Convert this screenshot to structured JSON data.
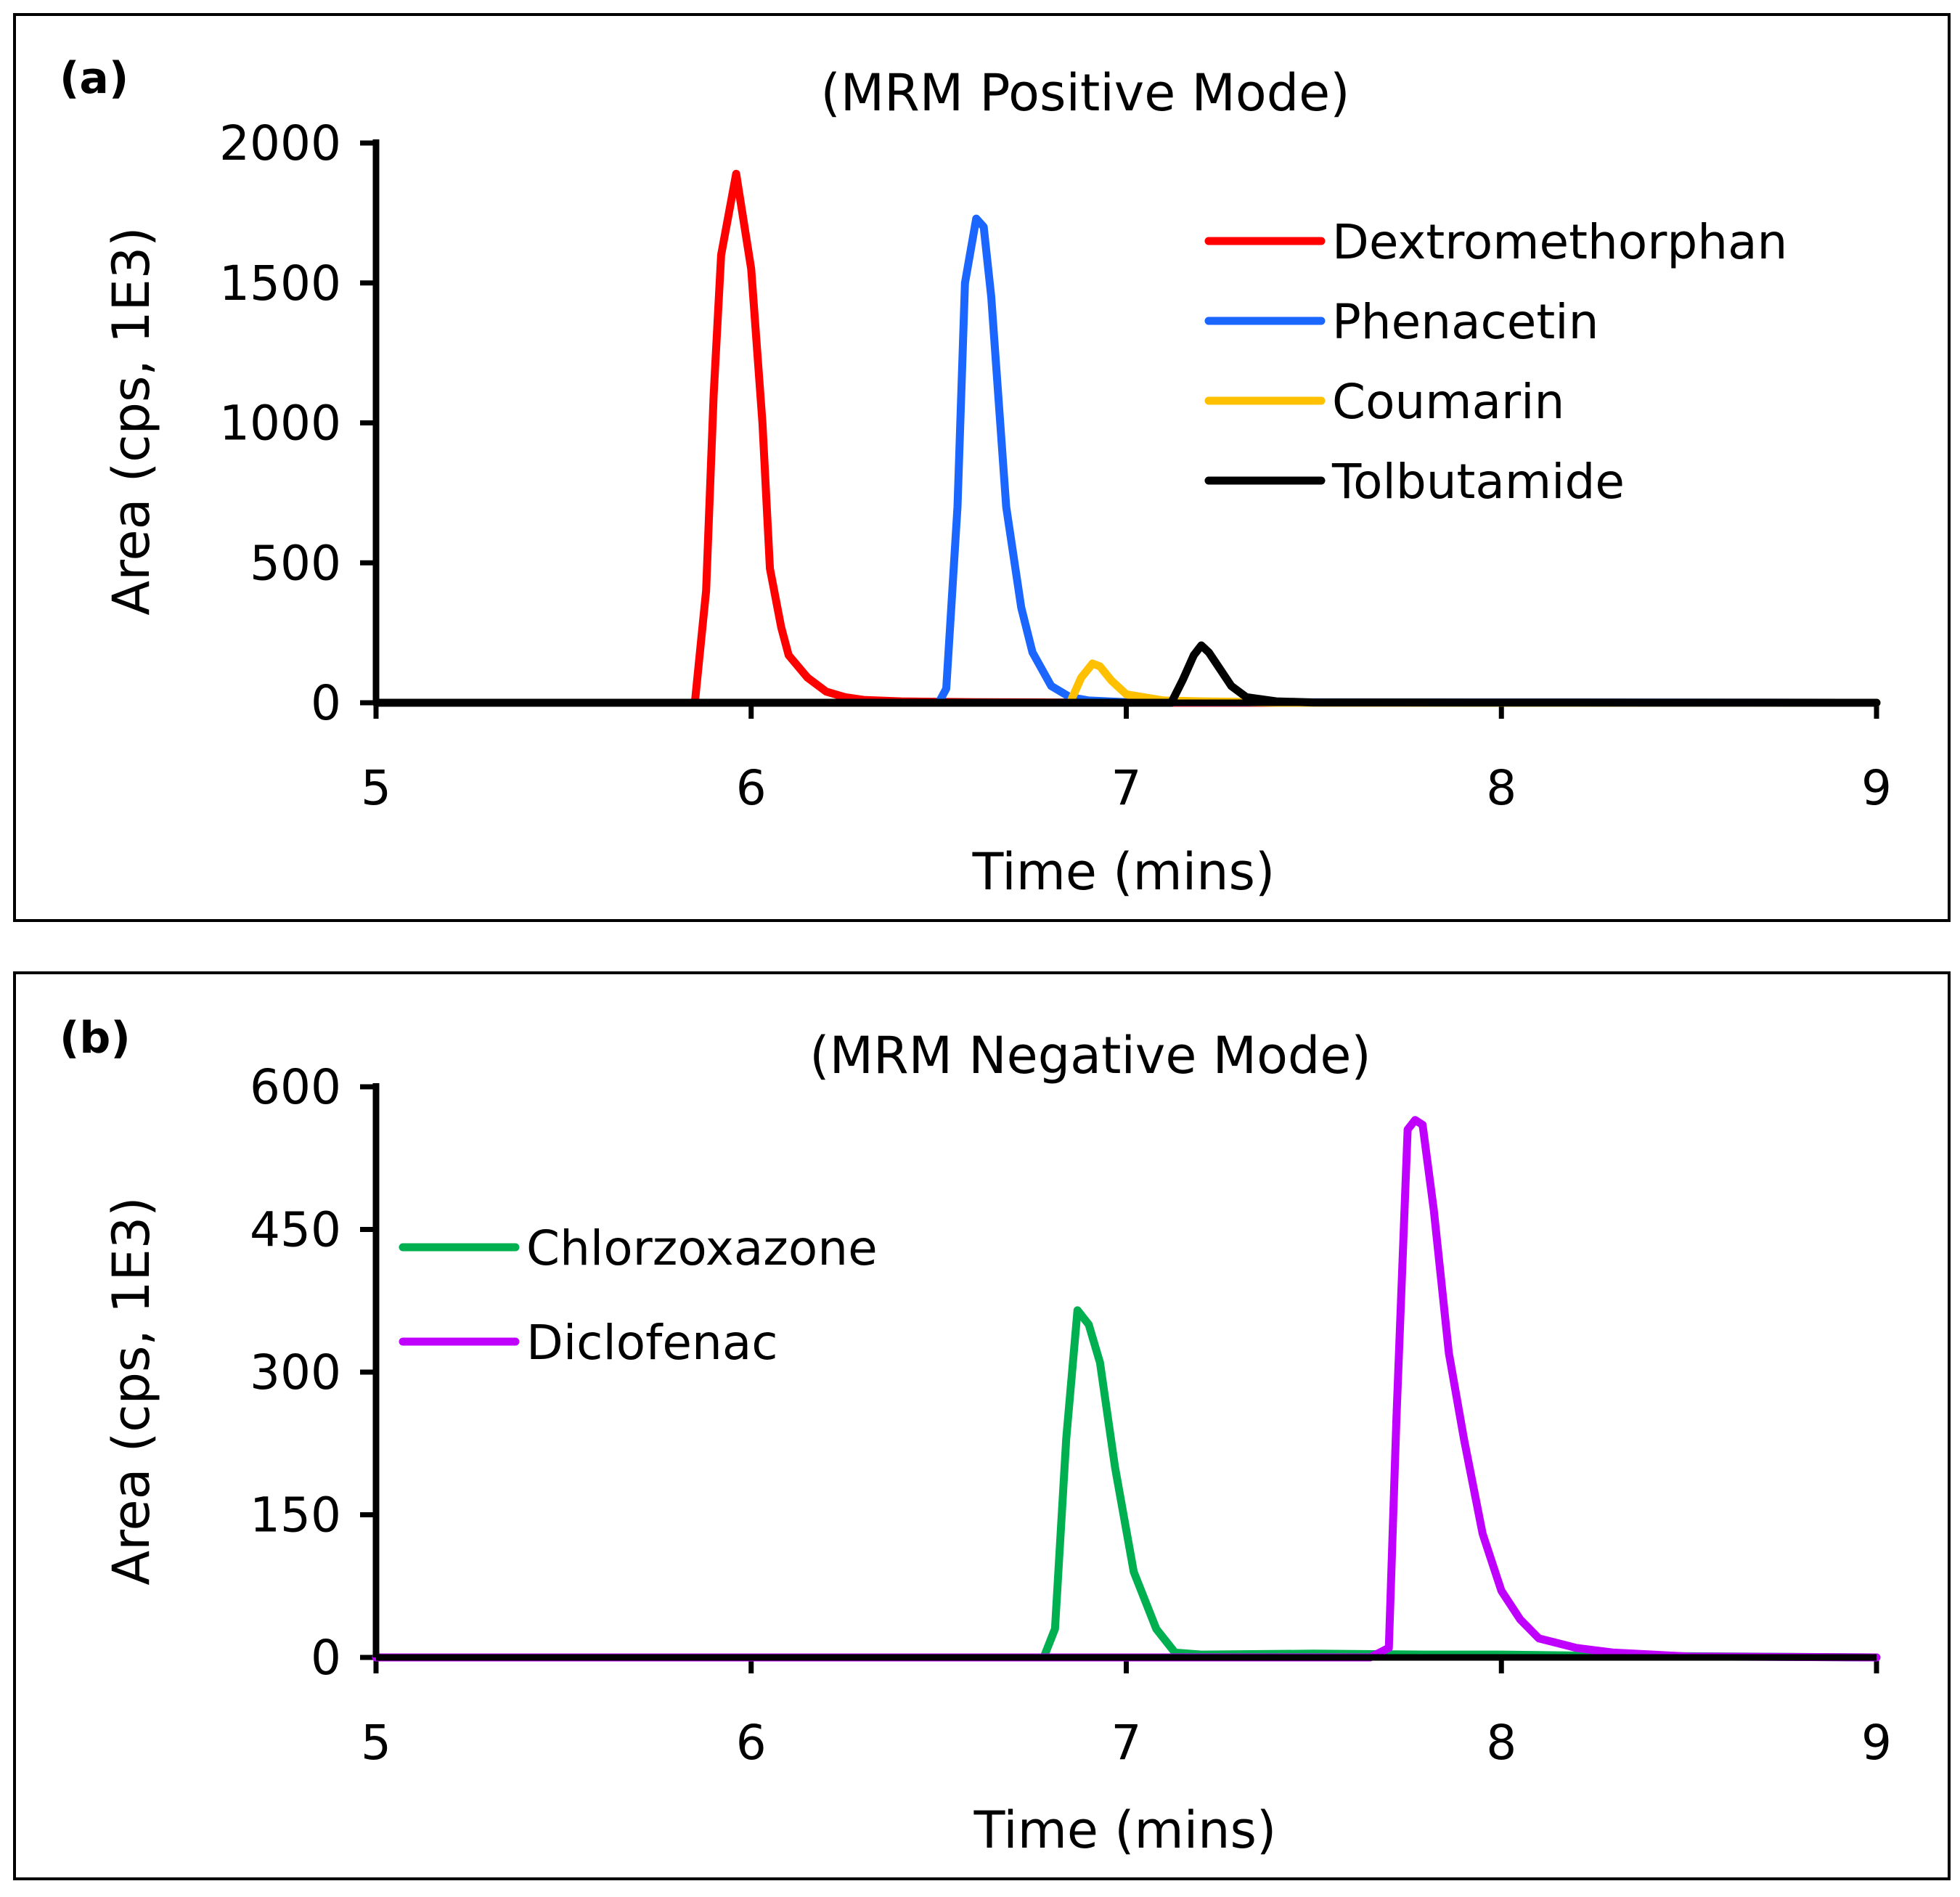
{
  "chart_data": [
    {
      "type": "line",
      "panel_label": "(a)",
      "title": "(MRM Positive Mode)",
      "xlabel": "Time (mins)",
      "ylabel": "Area (cps, 1E3)",
      "xlim": [
        5,
        9
      ],
      "ylim": [
        0,
        2000
      ],
      "x_ticks": [
        5,
        6,
        7,
        8,
        9
      ],
      "y_ticks": [
        0,
        500,
        1000,
        1500,
        2000
      ],
      "grid": false,
      "legend_position": "top-right",
      "series": [
        {
          "name": "Dextromethorphan",
          "color": "#ff0000",
          "x": [
            5.0,
            5.85,
            5.88,
            5.9,
            5.92,
            5.96,
            6.0,
            6.03,
            6.05,
            6.08,
            6.1,
            6.15,
            6.2,
            6.25,
            6.3,
            6.4,
            6.5,
            6.6,
            6.8,
            7.0,
            9.0
          ],
          "y": [
            0,
            0,
            400,
            1100,
            1600,
            1890,
            1550,
            1000,
            480,
            270,
            170,
            90,
            40,
            20,
            10,
            5,
            3,
            2,
            1,
            0,
            0
          ]
        },
        {
          "name": "Phenacetin",
          "color": "#1a66ff",
          "x": [
            5.0,
            6.5,
            6.52,
            6.55,
            6.57,
            6.6,
            6.62,
            6.64,
            6.68,
            6.72,
            6.75,
            6.8,
            6.85,
            6.9,
            7.0,
            9.0
          ],
          "y": [
            0,
            0,
            50,
            700,
            1500,
            1730,
            1700,
            1450,
            700,
            340,
            180,
            60,
            20,
            8,
            2,
            0
          ]
        },
        {
          "name": "Coumarin",
          "color": "#ffc000",
          "x": [
            5.0,
            6.85,
            6.88,
            6.91,
            6.93,
            6.96,
            7.0,
            7.1,
            7.2,
            7.3,
            7.4,
            9.0
          ],
          "y": [
            0,
            0,
            90,
            140,
            130,
            80,
            30,
            8,
            5,
            3,
            0,
            0
          ]
        },
        {
          "name": "Tolbutamide",
          "color": "#000000",
          "x": [
            5.0,
            7.12,
            7.15,
            7.18,
            7.2,
            7.22,
            7.25,
            7.28,
            7.32,
            7.4,
            7.5,
            9.0
          ],
          "y": [
            0,
            0,
            80,
            170,
            205,
            180,
            120,
            60,
            20,
            5,
            1,
            0
          ]
        }
      ]
    },
    {
      "type": "line",
      "panel_label": "(b)",
      "title": "(MRM Negative Mode)",
      "xlabel": "Time (mins)",
      "ylabel": "Area (cps, 1E3)",
      "xlim": [
        5,
        9
      ],
      "ylim": [
        0,
        600
      ],
      "x_ticks": [
        5,
        6,
        7,
        8,
        9
      ],
      "y_ticks": [
        0,
        150,
        300,
        450,
        600
      ],
      "grid": false,
      "legend_position": "center-left",
      "series": [
        {
          "name": "Chlorzoxazone",
          "color": "#00b050",
          "x": [
            5.0,
            6.78,
            6.81,
            6.84,
            6.87,
            6.9,
            6.93,
            6.97,
            7.02,
            7.08,
            7.13,
            7.2,
            7.5,
            7.8,
            8.0,
            8.2,
            9.0
          ],
          "y": [
            0,
            0,
            30,
            230,
            365,
            350,
            310,
            200,
            90,
            30,
            5,
            3,
            4,
            3,
            3,
            2,
            0
          ]
        },
        {
          "name": "Diclofenac",
          "color": "#c000ff",
          "x": [
            5.0,
            7.65,
            7.7,
            7.72,
            7.75,
            7.77,
            7.79,
            7.82,
            7.86,
            7.9,
            7.95,
            8.0,
            8.05,
            8.1,
            8.2,
            8.3,
            8.5,
            9.0
          ],
          "y": [
            0,
            0,
            10,
            250,
            555,
            565,
            560,
            470,
            320,
            230,
            130,
            70,
            40,
            20,
            10,
            5,
            1,
            0
          ]
        }
      ]
    }
  ]
}
